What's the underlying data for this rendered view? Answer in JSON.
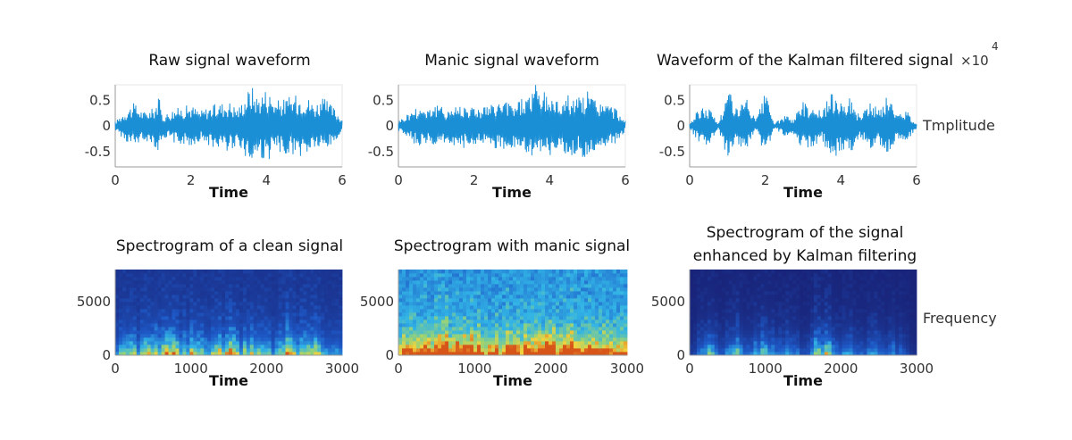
{
  "colors": {
    "wave": "#1a8fd6",
    "spec_low": "#1f2f8c",
    "spec_mid": "#36b4e6",
    "spec_high": "#f0d23a",
    "spec_peak": "#d9561a"
  },
  "exponent": {
    "base": "×10",
    "power": "4"
  },
  "side_labels": {
    "amplitude": "Tmplitude",
    "frequency": "Frequency"
  },
  "chart_data": [
    {
      "type": "line",
      "id": "raw",
      "title": "Raw signal waveform",
      "xlabel": "Time",
      "ylabel": "",
      "xlim": [
        0,
        6
      ],
      "ylim": [
        -0.8,
        0.8
      ],
      "xticks": [
        0,
        2,
        4,
        6
      ],
      "yticks": [
        0.5,
        0,
        -0.5
      ],
      "ytick_labels": [
        "0.5",
        "0",
        "-0.5"
      ],
      "x": [
        0.0,
        0.25,
        0.5,
        0.75,
        1.0,
        1.15,
        1.25,
        1.5,
        1.75,
        2.0,
        2.25,
        2.5,
        2.75,
        3.0,
        3.25,
        3.5,
        3.6,
        3.75,
        4.0,
        4.25,
        4.5,
        4.75,
        5.0,
        5.25,
        5.5,
        5.75,
        6.0
      ],
      "envelope": [
        0.08,
        0.3,
        0.45,
        0.28,
        0.35,
        0.6,
        0.2,
        0.32,
        0.38,
        0.42,
        0.3,
        0.4,
        0.45,
        0.5,
        0.35,
        0.7,
        0.82,
        0.6,
        0.75,
        0.5,
        0.55,
        0.6,
        0.65,
        0.45,
        0.55,
        0.4,
        0.15
      ]
    },
    {
      "type": "line",
      "id": "manic",
      "title": "Manic signal waveform",
      "xlabel": "Time",
      "ylabel": "",
      "xlim": [
        0,
        6
      ],
      "ylim": [
        -0.8,
        0.8
      ],
      "xticks": [
        0,
        2,
        4,
        6
      ],
      "yticks": [
        0.5,
        0,
        -0.5
      ],
      "ytick_labels": [
        "0.5",
        "0",
        "-0.5"
      ],
      "x": [
        0.0,
        0.25,
        0.5,
        0.75,
        1.0,
        1.25,
        1.5,
        1.75,
        2.0,
        2.25,
        2.5,
        2.75,
        3.0,
        3.25,
        3.5,
        3.6,
        3.75,
        4.0,
        4.25,
        4.5,
        4.75,
        5.0,
        5.25,
        5.5,
        5.75,
        6.0
      ],
      "envelope": [
        0.1,
        0.25,
        0.4,
        0.38,
        0.42,
        0.35,
        0.4,
        0.45,
        0.38,
        0.4,
        0.42,
        0.5,
        0.45,
        0.55,
        0.65,
        0.85,
        0.7,
        0.6,
        0.5,
        0.65,
        0.55,
        0.7,
        0.5,
        0.45,
        0.35,
        0.1
      ]
    },
    {
      "type": "line",
      "id": "kalman",
      "title": "Waveform of the Kalman filtered signal",
      "xlabel": "Time",
      "ylabel": "",
      "xlim": [
        0,
        6
      ],
      "ylim": [
        -0.8,
        0.8
      ],
      "xticks": [
        0,
        2,
        4,
        6
      ],
      "yticks": [
        0.5,
        0,
        -0.5
      ],
      "ytick_labels": [
        "0.5",
        "0",
        "-0.5"
      ],
      "x": [
        0.0,
        0.25,
        0.5,
        0.75,
        1.0,
        1.1,
        1.25,
        1.5,
        1.75,
        2.0,
        2.25,
        2.5,
        2.75,
        3.0,
        3.25,
        3.5,
        3.75,
        4.0,
        4.25,
        4.5,
        4.75,
        5.0,
        5.25,
        5.5,
        5.75,
        6.0
      ],
      "envelope": [
        0.05,
        0.35,
        0.4,
        0.05,
        0.65,
        0.75,
        0.35,
        0.55,
        0.1,
        0.65,
        0.05,
        0.2,
        0.15,
        0.5,
        0.4,
        0.3,
        0.65,
        0.6,
        0.55,
        0.2,
        0.45,
        0.35,
        0.6,
        0.25,
        0.3,
        0.05
      ]
    },
    {
      "type": "heatmap",
      "id": "spec_clean",
      "title": "Spectrogram of a clean signal",
      "xlabel": "Time",
      "ylabel": "",
      "xlim": [
        0,
        3000
      ],
      "ylim": [
        0,
        8000
      ],
      "xticks": [
        0,
        1000,
        2000,
        3000
      ],
      "yticks": [
        5000,
        0
      ],
      "ytick_labels": [
        "5000",
        "0"
      ],
      "x": [
        0,
        150,
        300,
        450,
        600,
        750,
        900,
        1050,
        1200,
        1350,
        1500,
        1650,
        1800,
        1950,
        2100,
        2250,
        2400,
        2550,
        2700,
        2850,
        3000
      ],
      "activity": [
        0.3,
        0.7,
        0.5,
        0.8,
        0.6,
        0.9,
        0.5,
        0.7,
        0.4,
        0.6,
        0.85,
        0.5,
        0.7,
        0.6,
        0.4,
        0.9,
        0.5,
        0.75,
        0.6,
        0.4,
        0.3
      ],
      "background": 0.1
    },
    {
      "type": "heatmap",
      "id": "spec_manic",
      "title": "Spectrogram with manic signal",
      "xlabel": "Time",
      "ylabel": "",
      "xlim": [
        0,
        3000
      ],
      "ylim": [
        0,
        8000
      ],
      "xticks": [
        0,
        1000,
        2000,
        3000
      ],
      "yticks": [
        5000,
        0
      ],
      "ytick_labels": [
        "5000",
        "0"
      ],
      "x": [
        0,
        150,
        300,
        450,
        600,
        750,
        900,
        1050,
        1200,
        1350,
        1500,
        1650,
        1800,
        1950,
        2100,
        2250,
        2400,
        2550,
        2700,
        2850,
        3000
      ],
      "activity": [
        0.5,
        0.6,
        0.7,
        0.75,
        0.8,
        0.7,
        0.65,
        0.7,
        0.6,
        0.65,
        0.7,
        0.75,
        0.8,
        0.7,
        0.65,
        0.85,
        0.7,
        0.65,
        0.6,
        0.55,
        0.5
      ],
      "background": 0.5
    },
    {
      "type": "heatmap",
      "id": "spec_kalman",
      "title": "Spectrogram of the signal enhanced by Kalman filtering",
      "title_lines": [
        "Spectrogram of the signal",
        "enhanced by Kalman filtering"
      ],
      "xlabel": "Time",
      "ylabel": "",
      "xlim": [
        0,
        3000
      ],
      "ylim": [
        0,
        8000
      ],
      "xticks": [
        0,
        1000,
        2000,
        3000
      ],
      "yticks": [
        5000,
        0
      ],
      "ytick_labels": [
        "5000",
        "0"
      ],
      "x": [
        0,
        150,
        300,
        450,
        600,
        750,
        900,
        1050,
        1200,
        1350,
        1500,
        1650,
        1800,
        1950,
        2100,
        2250,
        2400,
        2550,
        2700,
        2850,
        3000
      ],
      "activity": [
        0.1,
        0.4,
        0.55,
        0.2,
        0.7,
        0.25,
        0.6,
        0.5,
        0.3,
        0.55,
        0.15,
        0.6,
        0.7,
        0.4,
        0.55,
        0.2,
        0.45,
        0.3,
        0.35,
        0.2,
        0.05
      ],
      "background": 0.0
    }
  ]
}
